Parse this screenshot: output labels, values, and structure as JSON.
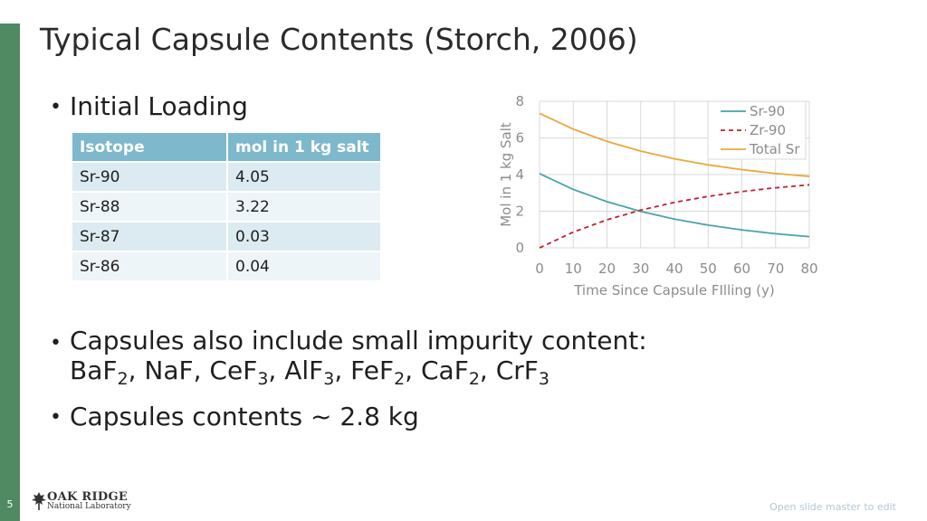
{
  "slide": {
    "title": "Typical Capsule Contents (Storch, 2006)",
    "page_number": "5",
    "footer_note": "Open slide master to edit",
    "logo": {
      "line1": "OAK RIDGE",
      "line2": "National Laboratory"
    }
  },
  "bullets": {
    "b1": "Initial Loading",
    "b2": {
      "line1": "Capsules also include small impurity content:",
      "compounds": [
        {
          "base": "BaF",
          "sub": "2",
          "sep": ", "
        },
        {
          "base": "NaF",
          "sub": "",
          "sep": ", "
        },
        {
          "base": "CeF",
          "sub": "3",
          "sep": ", "
        },
        {
          "base": "AlF",
          "sub": "3",
          "sep": ", "
        },
        {
          "base": "FeF",
          "sub": "2",
          "sep": ", "
        },
        {
          "base": "CaF",
          "sub": "2",
          "sep": ", "
        },
        {
          "base": "CrF",
          "sub": "3",
          "sep": ""
        }
      ]
    },
    "b3": "Capsules contents ~ 2.8 kg"
  },
  "table": {
    "headers": [
      "Isotope",
      "mol in 1 kg salt"
    ],
    "rows": [
      [
        "Sr-90",
        "4.05"
      ],
      [
        "Sr-88",
        "3.22"
      ],
      [
        "Sr-87",
        "0.03"
      ],
      [
        "Sr-86",
        "0.04"
      ]
    ]
  },
  "colors": {
    "sr90": "#4ba3a8",
    "zr90": "#c0202a",
    "total": "#e8a93c",
    "grid": "#d9d9d9",
    "axis_text": "#8c8c8c"
  },
  "chart_data": {
    "type": "line",
    "title": "",
    "xlabel": "Time Since Capsule FIlling (y)",
    "ylabel": "Mol in 1 kg Salt",
    "xlim": [
      0,
      80
    ],
    "ylim": [
      0,
      8
    ],
    "x_ticks": [
      0,
      10,
      20,
      30,
      40,
      50,
      60,
      70,
      80
    ],
    "y_ticks": [
      0,
      2,
      4,
      6,
      8
    ],
    "grid": true,
    "legend_position": "top-right",
    "x": [
      0,
      10,
      20,
      30,
      40,
      50,
      60,
      70,
      80
    ],
    "series": [
      {
        "name": "Sr-90",
        "style": "solid",
        "color": "#4ba3a8",
        "values": [
          4.05,
          3.19,
          2.52,
          1.99,
          1.57,
          1.24,
          0.98,
          0.77,
          0.61
        ]
      },
      {
        "name": "Zr-90",
        "style": "dashed",
        "color": "#c0202a",
        "values": [
          0.0,
          0.86,
          1.53,
          2.06,
          2.48,
          2.81,
          3.07,
          3.28,
          3.44
        ]
      },
      {
        "name": "Total Sr",
        "style": "solid",
        "color": "#e8a93c",
        "values": [
          7.34,
          6.48,
          5.81,
          5.28,
          4.86,
          4.53,
          4.27,
          4.06,
          3.9
        ]
      }
    ]
  }
}
